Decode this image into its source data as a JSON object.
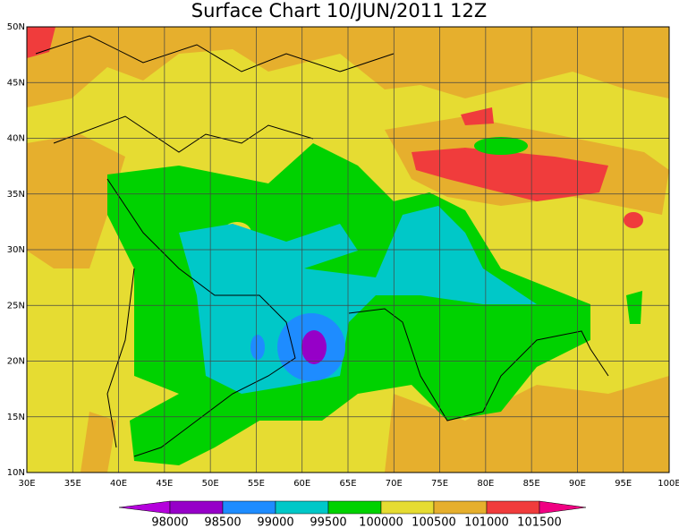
{
  "title": "Surface Chart 10/JUN/2011 12Z",
  "map": {
    "xlim": [
      30,
      100
    ],
    "ylim": [
      10,
      50
    ],
    "xticks": [
      {
        "value": 30,
        "label": "30E"
      },
      {
        "value": 35,
        "label": "35E"
      },
      {
        "value": 40,
        "label": "40E"
      },
      {
        "value": 45,
        "label": "45E"
      },
      {
        "value": 50,
        "label": "50E"
      },
      {
        "value": 55,
        "label": "55E"
      },
      {
        "value": 60,
        "label": "60E"
      },
      {
        "value": 65,
        "label": "65E"
      },
      {
        "value": 70,
        "label": "70E"
      },
      {
        "value": 75,
        "label": "75E"
      },
      {
        "value": 80,
        "label": "80E"
      },
      {
        "value": 85,
        "label": "85E"
      },
      {
        "value": 90,
        "label": "90E"
      },
      {
        "value": 95,
        "label": "95E"
      },
      {
        "value": 100,
        "label": "100E"
      }
    ],
    "yticks": [
      {
        "value": 10,
        "label": "10N"
      },
      {
        "value": 15,
        "label": "15N"
      },
      {
        "value": 20,
        "label": "20N"
      },
      {
        "value": 25,
        "label": "25N"
      },
      {
        "value": 30,
        "label": "30N"
      },
      {
        "value": 35,
        "label": "35N"
      },
      {
        "value": 40,
        "label": "40N"
      },
      {
        "value": 45,
        "label": "45N"
      },
      {
        "value": 50,
        "label": "50N"
      }
    ]
  },
  "colorbar": {
    "levels": [
      98000,
      98500,
      99000,
      99500,
      100000,
      100500,
      101000,
      101500
    ],
    "colors": [
      "#b400dc",
      "#9600c8",
      "#1e8cff",
      "#00c8c8",
      "#00d200",
      "#e6dc32",
      "#e6af2d",
      "#f03c3c",
      "#f00082"
    ]
  }
}
